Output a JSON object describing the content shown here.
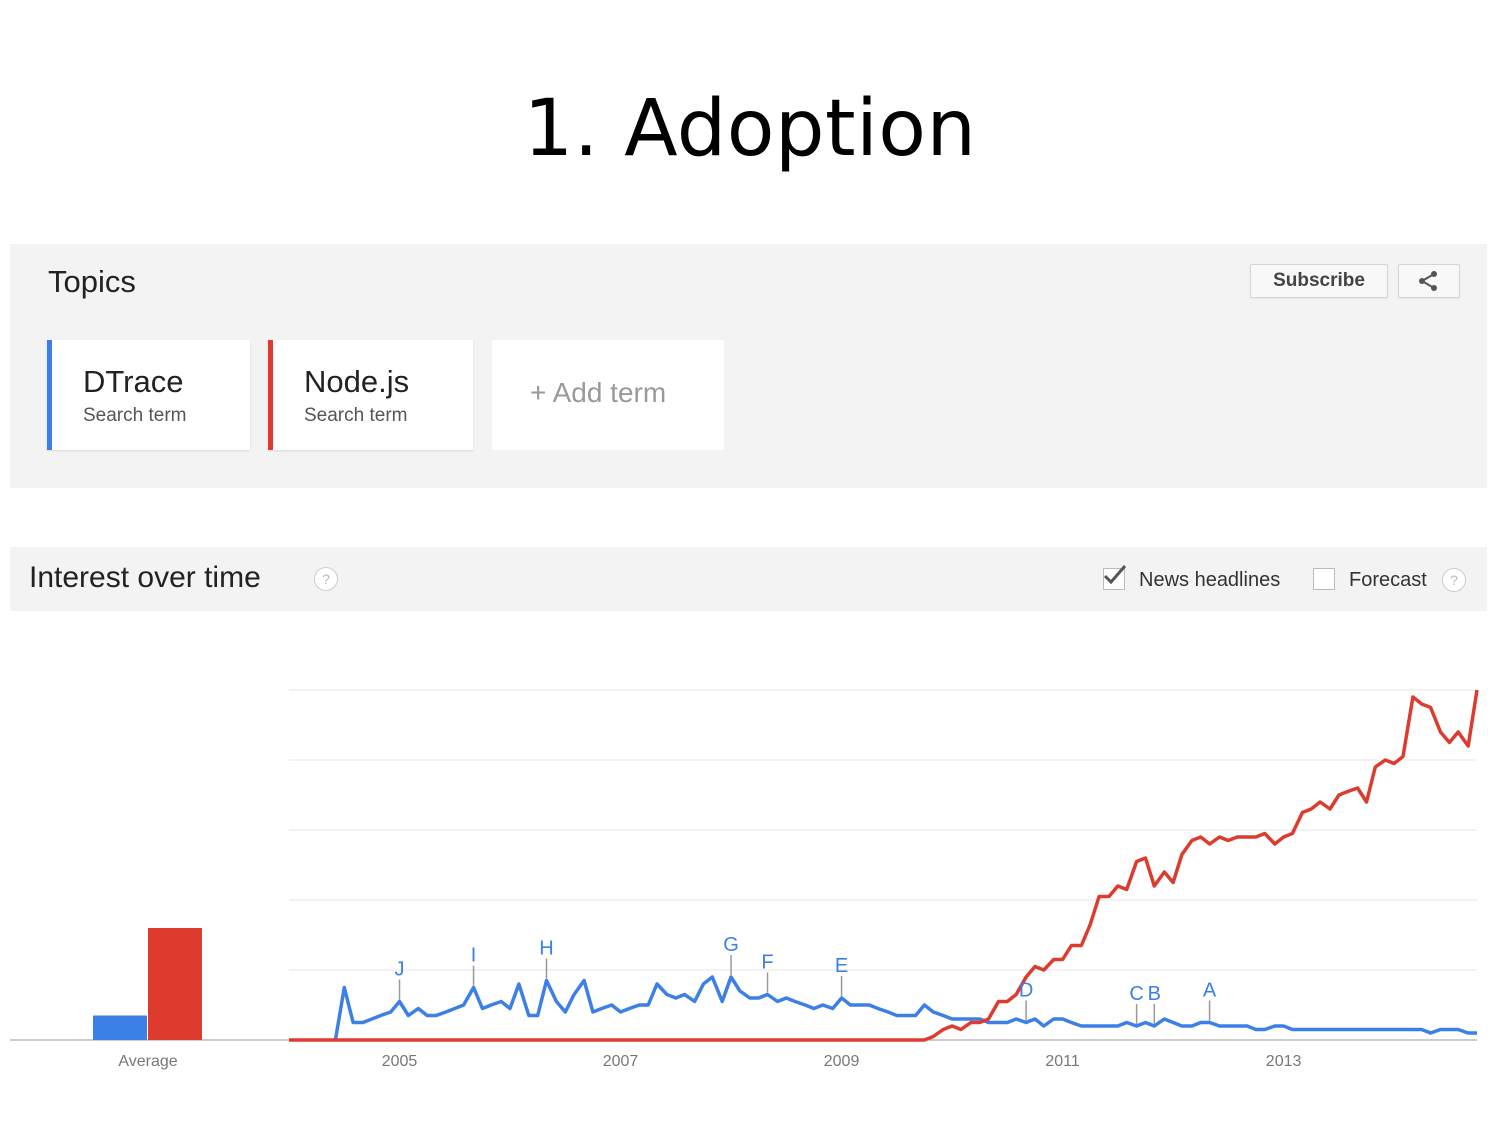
{
  "slide": {
    "title": "1. Adoption"
  },
  "topics": {
    "title": "Topics",
    "subscribe_label": "Subscribe",
    "share_icon": "share-icon",
    "terms": [
      {
        "name": "DTrace",
        "type": "Search term",
        "color": "#3c7fe6"
      },
      {
        "name": "Node.js",
        "type": "Search term",
        "color": "#dc3b2e"
      }
    ],
    "add_term": "+ Add term"
  },
  "interest": {
    "title": "Interest over time",
    "help_icon": "help-icon",
    "news_headlines": {
      "label": "News headlines",
      "checked": true
    },
    "forecast": {
      "label": "Forecast",
      "checked": false
    }
  },
  "chart_data": {
    "type": "line",
    "grid": true,
    "legend": "none",
    "ylim": [
      0,
      100
    ],
    "average": {
      "label": "Average",
      "values": [
        7,
        32
      ]
    },
    "x_ticks": [
      "2005",
      "2007",
      "2009",
      "2011",
      "2013"
    ],
    "xlim": [
      2004.0,
      2014.75
    ],
    "series": [
      {
        "name": "DTrace",
        "color": "#3c7fe6",
        "points": [
          [
            2004.42,
            0
          ],
          [
            2004.5,
            15
          ],
          [
            2004.58,
            5
          ],
          [
            2004.67,
            5
          ],
          [
            2004.75,
            6
          ],
          [
            2004.83,
            7
          ],
          [
            2004.92,
            8
          ],
          [
            2005.0,
            11
          ],
          [
            2005.08,
            7
          ],
          [
            2005.17,
            9
          ],
          [
            2005.25,
            7
          ],
          [
            2005.33,
            7
          ],
          [
            2005.42,
            8
          ],
          [
            2005.5,
            9
          ],
          [
            2005.58,
            10
          ],
          [
            2005.67,
            15
          ],
          [
            2005.75,
            9
          ],
          [
            2005.83,
            10
          ],
          [
            2005.92,
            11
          ],
          [
            2006.0,
            9
          ],
          [
            2006.08,
            16
          ],
          [
            2006.17,
            7
          ],
          [
            2006.25,
            7
          ],
          [
            2006.33,
            17
          ],
          [
            2006.42,
            11
          ],
          [
            2006.5,
            8
          ],
          [
            2006.58,
            13
          ],
          [
            2006.67,
            17
          ],
          [
            2006.75,
            8
          ],
          [
            2006.83,
            9
          ],
          [
            2006.92,
            10
          ],
          [
            2007.0,
            8
          ],
          [
            2007.08,
            9
          ],
          [
            2007.17,
            10
          ],
          [
            2007.25,
            10
          ],
          [
            2007.33,
            16
          ],
          [
            2007.42,
            13
          ],
          [
            2007.5,
            12
          ],
          [
            2007.58,
            13
          ],
          [
            2007.67,
            11
          ],
          [
            2007.75,
            16
          ],
          [
            2007.83,
            18
          ],
          [
            2007.92,
            11
          ],
          [
            2008.0,
            18
          ],
          [
            2008.08,
            14
          ],
          [
            2008.17,
            12
          ],
          [
            2008.25,
            12
          ],
          [
            2008.33,
            13
          ],
          [
            2008.42,
            11
          ],
          [
            2008.5,
            12
          ],
          [
            2008.58,
            11
          ],
          [
            2008.67,
            10
          ],
          [
            2008.75,
            9
          ],
          [
            2008.83,
            10
          ],
          [
            2008.92,
            9
          ],
          [
            2009.0,
            12
          ],
          [
            2009.08,
            10
          ],
          [
            2009.17,
            10
          ],
          [
            2009.25,
            10
          ],
          [
            2009.33,
            9
          ],
          [
            2009.42,
            8
          ],
          [
            2009.5,
            7
          ],
          [
            2009.58,
            7
          ],
          [
            2009.67,
            7
          ],
          [
            2009.75,
            10
          ],
          [
            2009.83,
            8
          ],
          [
            2009.92,
            7
          ],
          [
            2010.0,
            6
          ],
          [
            2010.08,
            6
          ],
          [
            2010.17,
            6
          ],
          [
            2010.25,
            6
          ],
          [
            2010.33,
            5
          ],
          [
            2010.42,
            5
          ],
          [
            2010.5,
            5
          ],
          [
            2010.58,
            6
          ],
          [
            2010.67,
            5
          ],
          [
            2010.75,
            6
          ],
          [
            2010.83,
            4
          ],
          [
            2010.92,
            6
          ],
          [
            2011.0,
            6
          ],
          [
            2011.08,
            5
          ],
          [
            2011.17,
            4
          ],
          [
            2011.25,
            4
          ],
          [
            2011.33,
            4
          ],
          [
            2011.42,
            4
          ],
          [
            2011.5,
            4
          ],
          [
            2011.58,
            5
          ],
          [
            2011.67,
            4
          ],
          [
            2011.75,
            5
          ],
          [
            2011.83,
            4
          ],
          [
            2011.92,
            6
          ],
          [
            2012.0,
            5
          ],
          [
            2012.08,
            4
          ],
          [
            2012.17,
            4
          ],
          [
            2012.25,
            5
          ],
          [
            2012.33,
            5
          ],
          [
            2012.42,
            4
          ],
          [
            2012.5,
            4
          ],
          [
            2012.58,
            4
          ],
          [
            2012.67,
            4
          ],
          [
            2012.75,
            3
          ],
          [
            2012.83,
            3
          ],
          [
            2012.92,
            4
          ],
          [
            2013.0,
            4
          ],
          [
            2013.08,
            3
          ],
          [
            2013.17,
            3
          ],
          [
            2013.25,
            3
          ],
          [
            2013.33,
            3
          ],
          [
            2013.42,
            3
          ],
          [
            2013.5,
            3
          ],
          [
            2013.58,
            3
          ],
          [
            2013.67,
            3
          ],
          [
            2013.75,
            3
          ],
          [
            2013.83,
            3
          ],
          [
            2013.92,
            3
          ],
          [
            2014.0,
            3
          ],
          [
            2014.08,
            3
          ],
          [
            2014.17,
            3
          ],
          [
            2014.25,
            3
          ],
          [
            2014.33,
            2
          ],
          [
            2014.42,
            3
          ],
          [
            2014.5,
            3
          ],
          [
            2014.58,
            3
          ],
          [
            2014.67,
            2
          ],
          [
            2014.75,
            2
          ]
        ]
      },
      {
        "name": "Node.js",
        "color": "#dc3b2e",
        "points": [
          [
            2004.0,
            0
          ],
          [
            2009.75,
            0
          ],
          [
            2009.83,
            1
          ],
          [
            2009.92,
            3
          ],
          [
            2010.0,
            4
          ],
          [
            2010.08,
            3
          ],
          [
            2010.17,
            5
          ],
          [
            2010.25,
            5
          ],
          [
            2010.33,
            6
          ],
          [
            2010.42,
            11
          ],
          [
            2010.5,
            11
          ],
          [
            2010.58,
            13
          ],
          [
            2010.67,
            18
          ],
          [
            2010.75,
            21
          ],
          [
            2010.83,
            20
          ],
          [
            2010.92,
            23
          ],
          [
            2011.0,
            23
          ],
          [
            2011.08,
            27
          ],
          [
            2011.17,
            27
          ],
          [
            2011.25,
            33
          ],
          [
            2011.33,
            41
          ],
          [
            2011.42,
            41
          ],
          [
            2011.5,
            44
          ],
          [
            2011.58,
            43
          ],
          [
            2011.67,
            51
          ],
          [
            2011.75,
            52
          ],
          [
            2011.83,
            44
          ],
          [
            2011.92,
            48
          ],
          [
            2012.0,
            45
          ],
          [
            2012.08,
            53
          ],
          [
            2012.17,
            57
          ],
          [
            2012.25,
            58
          ],
          [
            2012.33,
            56
          ],
          [
            2012.42,
            58
          ],
          [
            2012.5,
            57
          ],
          [
            2012.58,
            58
          ],
          [
            2012.67,
            58
          ],
          [
            2012.75,
            58
          ],
          [
            2012.83,
            59
          ],
          [
            2012.92,
            56
          ],
          [
            2013.0,
            58
          ],
          [
            2013.08,
            59
          ],
          [
            2013.17,
            65
          ],
          [
            2013.25,
            66
          ],
          [
            2013.33,
            68
          ],
          [
            2013.42,
            66
          ],
          [
            2013.5,
            70
          ],
          [
            2013.58,
            71
          ],
          [
            2013.67,
            72
          ],
          [
            2013.75,
            68
          ],
          [
            2013.83,
            78
          ],
          [
            2013.92,
            80
          ],
          [
            2014.0,
            79
          ],
          [
            2014.08,
            81
          ],
          [
            2014.17,
            98
          ],
          [
            2014.25,
            96
          ],
          [
            2014.33,
            95
          ],
          [
            2014.42,
            88
          ],
          [
            2014.5,
            85
          ],
          [
            2014.58,
            88
          ],
          [
            2014.67,
            84
          ],
          [
            2014.75,
            100
          ]
        ]
      }
    ],
    "annotations": [
      {
        "label": "J",
        "x": 2005.0
      },
      {
        "label": "I",
        "x": 2005.67
      },
      {
        "label": "H",
        "x": 2006.33
      },
      {
        "label": "G",
        "x": 2008.0
      },
      {
        "label": "F",
        "x": 2008.33
      },
      {
        "label": "E",
        "x": 2009.0
      },
      {
        "label": "D",
        "x": 2010.67
      },
      {
        "label": "C",
        "x": 2011.67
      },
      {
        "label": "B",
        "x": 2011.83
      },
      {
        "label": "A",
        "x": 2012.33
      }
    ]
  }
}
